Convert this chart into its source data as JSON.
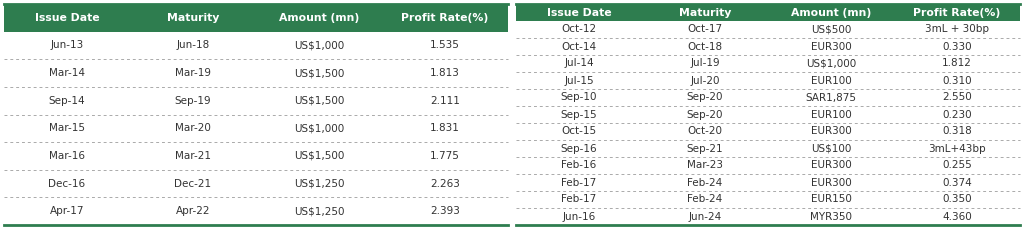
{
  "table1": {
    "headers": [
      "Issue Date",
      "Maturity",
      "Amount (mn)",
      "Profit Rate(%)"
    ],
    "rows": [
      [
        "Jun-13",
        "Jun-18",
        "US$1,000",
        "1.535"
      ],
      [
        "Mar-14",
        "Mar-19",
        "US$1,500",
        "1.813"
      ],
      [
        "Sep-14",
        "Sep-19",
        "US$1,500",
        "2.111"
      ],
      [
        "Mar-15",
        "Mar-20",
        "US$1,000",
        "1.831"
      ],
      [
        "Mar-16",
        "Mar-21",
        "US$1,500",
        "1.775"
      ],
      [
        "Dec-16",
        "Dec-21",
        "US$1,250",
        "2.263"
      ],
      [
        "Apr-17",
        "Apr-22",
        "US$1,250",
        "2.393"
      ]
    ]
  },
  "table2": {
    "headers": [
      "Issue Date",
      "Maturity",
      "Amount (mn)",
      "Profit Rate(%)"
    ],
    "rows": [
      [
        "Oct-12",
        "Oct-17",
        "US$500",
        "3mL + 30bp"
      ],
      [
        "Oct-14",
        "Oct-18",
        "EUR300",
        "0.330"
      ],
      [
        "Jul-14",
        "Jul-19",
        "US$1,000",
        "1.812"
      ],
      [
        "Jul-15",
        "Jul-20",
        "EUR100",
        "0.310"
      ],
      [
        "Sep-10",
        "Sep-20",
        "SAR1,875",
        "2.550"
      ],
      [
        "Sep-15",
        "Sep-20",
        "EUR100",
        "0.230"
      ],
      [
        "Oct-15",
        "Oct-20",
        "EUR300",
        "0.318"
      ],
      [
        "Sep-16",
        "Sep-21",
        "US$100",
        "3mL+43bp"
      ],
      [
        "Feb-16",
        "Mar-23",
        "EUR300",
        "0.255"
      ],
      [
        "Feb-17",
        "Feb-24",
        "EUR300",
        "0.374"
      ],
      [
        "Feb-17",
        "Feb-24",
        "EUR150",
        "0.350"
      ],
      [
        "Jun-16",
        "Jun-24",
        "MYR350",
        "4.360"
      ]
    ]
  },
  "header_bg": "#2e7d4f",
  "header_fg": "#ffffff",
  "row_bg": "#ffffff",
  "row_fg": "#333333",
  "separator_color": "#aaaaaa",
  "border_color": "#2e7d4f",
  "font_size": 7.5,
  "header_font_size": 7.8,
  "fig_width": 10.24,
  "fig_height": 2.29,
  "dpi": 100
}
